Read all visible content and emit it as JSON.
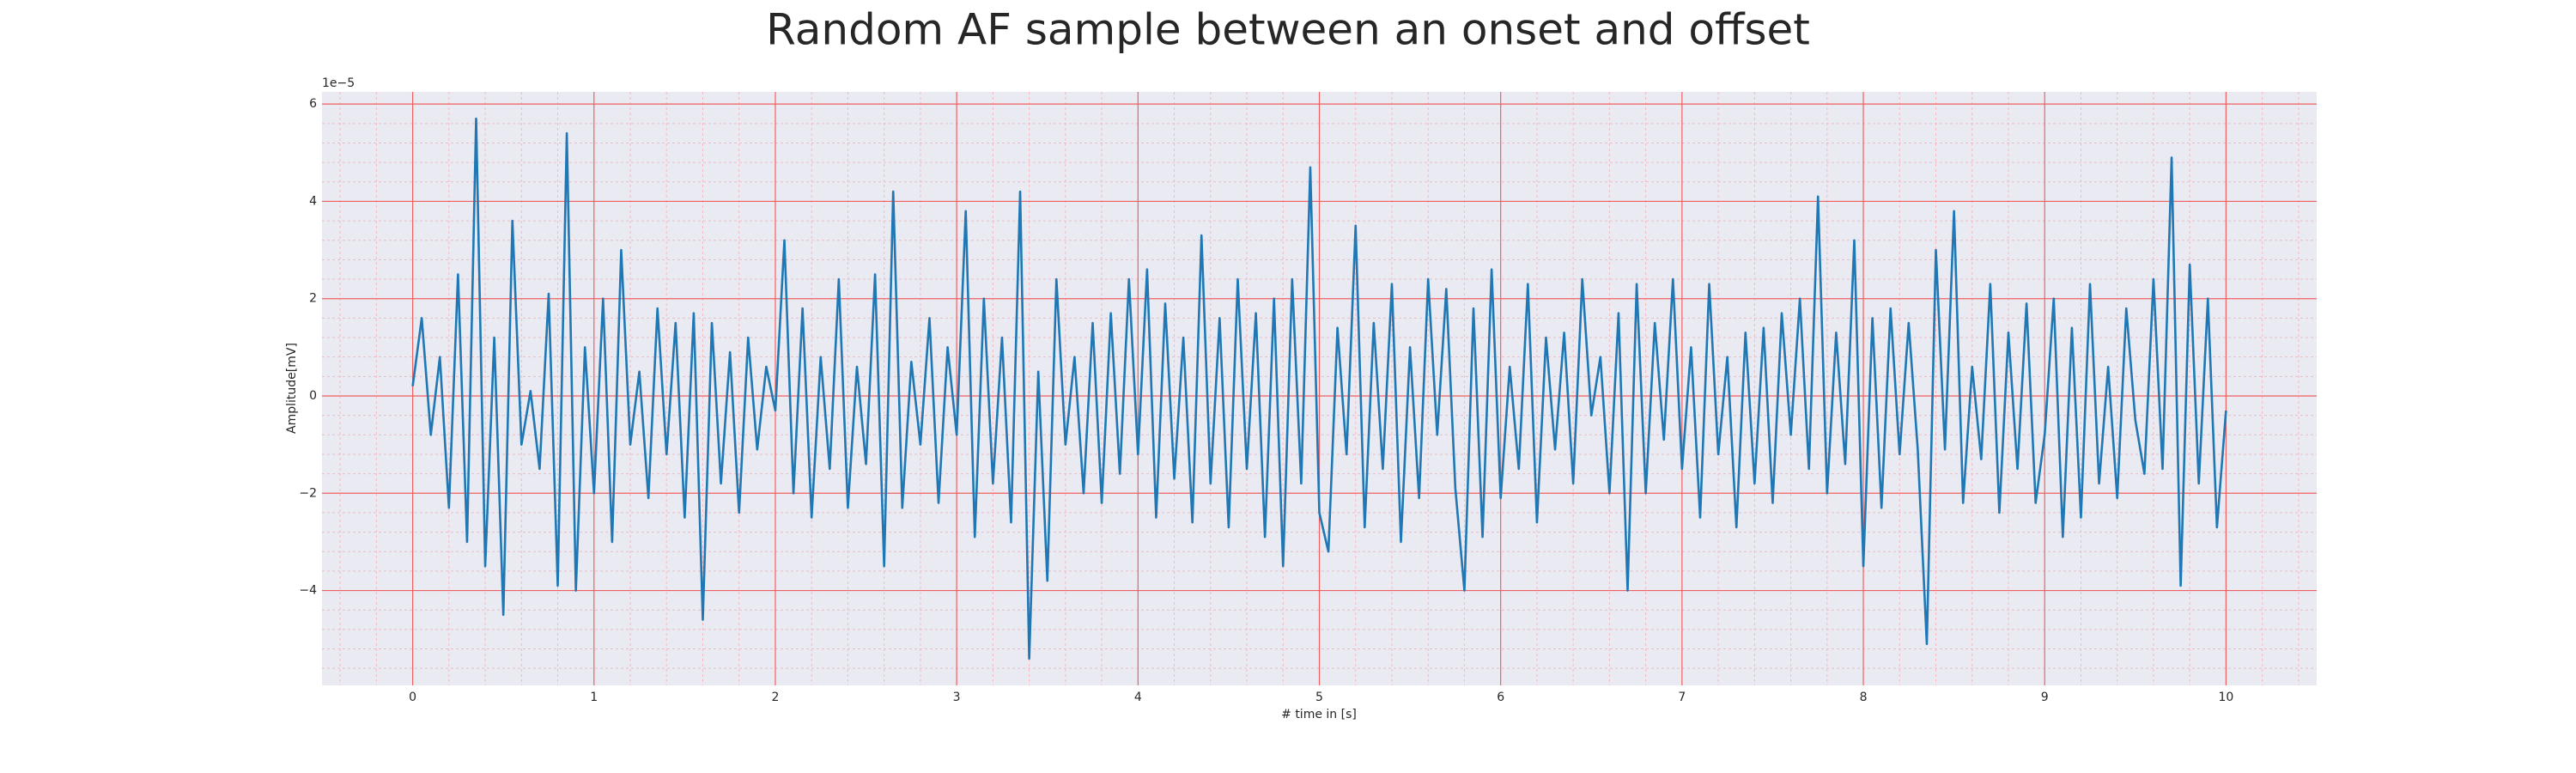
{
  "chart_data": {
    "type": "line",
    "title": "Random AF sample between an onset and offset",
    "xlabel": "# time in [s]",
    "ylabel": "Amplitude[mV]",
    "y_offset_label": "1e−5",
    "color": "#1f77b4",
    "x": [
      0,
      0.05,
      0.1,
      0.15,
      0.2,
      0.25,
      0.3,
      0.35,
      0.4,
      0.45,
      0.5,
      0.55,
      0.6,
      0.65,
      0.7,
      0.75,
      0.8,
      0.85,
      0.9,
      0.95,
      1,
      1.05,
      1.1,
      1.15,
      1.2,
      1.25,
      1.3,
      1.35,
      1.4,
      1.45,
      1.5,
      1.55,
      1.6,
      1.65,
      1.7,
      1.75,
      1.8,
      1.85,
      1.9,
      1.95,
      2,
      2.05,
      2.1,
      2.15,
      2.2,
      2.25,
      2.3,
      2.35,
      2.4,
      2.45,
      2.5,
      2.55,
      2.6,
      2.65,
      2.7,
      2.75,
      2.8,
      2.85,
      2.9,
      2.95,
      3,
      3.05,
      3.1,
      3.15,
      3.2,
      3.25,
      3.3,
      3.35,
      3.4,
      3.45,
      3.5,
      3.55,
      3.6,
      3.65,
      3.7,
      3.75,
      3.8,
      3.85,
      3.9,
      3.95,
      4,
      4.05,
      4.1,
      4.15,
      4.2,
      4.25,
      4.3,
      4.35,
      4.4,
      4.45,
      4.5,
      4.55,
      4.6,
      4.65,
      4.7,
      4.75,
      4.8,
      4.85,
      4.9,
      4.95,
      5,
      5.05,
      5.1,
      5.15,
      5.2,
      5.25,
      5.3,
      5.35,
      5.4,
      5.45,
      5.5,
      5.55,
      5.6,
      5.65,
      5.7,
      5.75,
      5.8,
      5.85,
      5.9,
      5.95,
      6,
      6.05,
      6.1,
      6.15,
      6.2,
      6.25,
      6.3,
      6.35,
      6.4,
      6.45,
      6.5,
      6.55,
      6.6,
      6.65,
      6.7,
      6.75,
      6.8,
      6.85,
      6.9,
      6.95,
      7,
      7.05,
      7.1,
      7.15,
      7.2,
      7.25,
      7.3,
      7.35,
      7.4,
      7.45,
      7.5,
      7.55,
      7.6,
      7.65,
      7.7,
      7.75,
      7.8,
      7.85,
      7.9,
      7.95,
      8,
      8.05,
      8.1,
      8.15,
      8.2,
      8.25,
      8.3,
      8.35,
      8.4,
      8.45,
      8.5,
      8.55,
      8.6,
      8.65,
      8.7,
      8.75,
      8.8,
      8.85,
      8.9,
      8.95,
      9,
      9.05,
      9.1,
      9.15,
      9.2,
      9.25,
      9.3,
      9.35,
      9.4,
      9.45,
      9.5,
      9.55,
      9.6,
      9.65,
      9.7,
      9.75,
      9.8,
      9.85,
      9.9,
      9.95,
      10
    ],
    "values": [
      0.2,
      1.6,
      -0.8,
      0.8,
      -2.3,
      2.5,
      -3.0,
      5.7,
      -3.5,
      1.2,
      -4.5,
      3.6,
      -1.0,
      0.1,
      -1.5,
      2.1,
      -3.9,
      5.4,
      -4.0,
      1.0,
      -2.0,
      2.0,
      -3.0,
      3.0,
      -1.0,
      0.5,
      -2.1,
      1.8,
      -1.2,
      1.5,
      -2.5,
      1.7,
      -4.6,
      1.5,
      -1.8,
      0.9,
      -2.4,
      1.2,
      -1.1,
      0.6,
      -0.3,
      3.2,
      -2.0,
      1.8,
      -2.5,
      0.8,
      -1.5,
      2.4,
      -2.3,
      0.6,
      -1.4,
      2.5,
      -3.5,
      4.2,
      -2.3,
      0.7,
      -1.0,
      1.6,
      -2.2,
      1.0,
      -0.8,
      3.8,
      -2.9,
      2.0,
      -1.8,
      1.2,
      -2.6,
      4.2,
      -5.4,
      0.5,
      -3.8,
      2.4,
      -1.0,
      0.8,
      -2.0,
      1.5,
      -2.2,
      1.7,
      -1.6,
      2.4,
      -1.2,
      2.6,
      -2.5,
      1.9,
      -1.7,
      1.2,
      -2.6,
      3.3,
      -1.8,
      1.6,
      -2.7,
      2.4,
      -1.5,
      1.7,
      -2.9,
      2.0,
      -3.5,
      2.4,
      -1.8,
      4.7,
      -2.4,
      -3.2,
      1.4,
      -1.2,
      3.5,
      -2.7,
      1.5,
      -1.5,
      2.3,
      -3.0,
      1.0,
      -2.1,
      2.4,
      -0.8,
      2.2,
      -1.9,
      -4.0,
      1.8,
      -2.9,
      2.6,
      -2.1,
      0.6,
      -1.5,
      2.3,
      -2.6,
      1.2,
      -1.1,
      1.3,
      -1.8,
      2.4,
      -0.4,
      0.8,
      -2.0,
      1.7,
      -4.0,
      2.3,
      -2.0,
      1.5,
      -0.9,
      2.4,
      -1.5,
      1.0,
      -2.5,
      2.3,
      -1.2,
      0.8,
      -2.7,
      1.3,
      -1.8,
      1.4,
      -2.2,
      1.7,
      -0.8,
      2.0,
      -1.5,
      4.1,
      -2.0,
      1.3,
      -1.4,
      3.2,
      -3.5,
      1.6,
      -2.3,
      1.8,
      -1.2,
      1.5,
      -1.1,
      -5.1,
      3.0,
      -1.1,
      3.8,
      -2.2,
      0.6,
      -1.3,
      2.3,
      -2.4,
      1.3,
      -1.5,
      1.9,
      -2.2,
      -0.8,
      2.0,
      -2.9,
      1.4,
      -2.5,
      2.3,
      -1.8,
      0.6,
      -2.1,
      1.8,
      -0.5,
      -1.6,
      2.4,
      -1.5,
      4.9,
      -3.9,
      2.7,
      -1.8,
      2.0,
      -2.7,
      -0.3
    ],
    "xlim": [
      -0.5,
      10.5
    ],
    "ylim": [
      -5.95,
      6.25
    ],
    "xticks": [
      0,
      1,
      2,
      3,
      4,
      5,
      6,
      7,
      8,
      9,
      10
    ],
    "yticks": [
      {
        "value": -4,
        "label": "−4"
      },
      {
        "value": -2,
        "label": "−2"
      },
      0,
      2,
      4,
      6
    ],
    "xminorticks": [
      -0.4,
      -0.2,
      0.2,
      0.4,
      0.6,
      0.8,
      1.2,
      1.4,
      1.6,
      1.8,
      2.2,
      2.4,
      2.6,
      2.8,
      3.2,
      3.4,
      3.6,
      3.8,
      4.2,
      4.4,
      4.6,
      4.8,
      5.2,
      5.4,
      5.6,
      5.8,
      6.2,
      6.4,
      6.6,
      6.8,
      7.2,
      7.4,
      7.6,
      7.8,
      8.2,
      8.4,
      8.6,
      8.8,
      9.2,
      9.4,
      9.6,
      9.8,
      10.2,
      10.4
    ],
    "yminorticks": [
      -5.6,
      -5.2,
      -4.8,
      -4.4,
      -3.6,
      -3.2,
      -2.8,
      -2.4,
      -1.6,
      -1.2,
      -0.8,
      -0.4,
      0.4,
      0.8,
      1.2,
      1.6,
      2.4,
      2.8,
      3.2,
      3.6,
      4.4,
      4.8,
      5.2,
      5.6,
      6.0
    ],
    "grid": true,
    "grid_color": "#f06060",
    "minor_grid_color": "#f6b8c0",
    "background": "#eaeaf2"
  }
}
